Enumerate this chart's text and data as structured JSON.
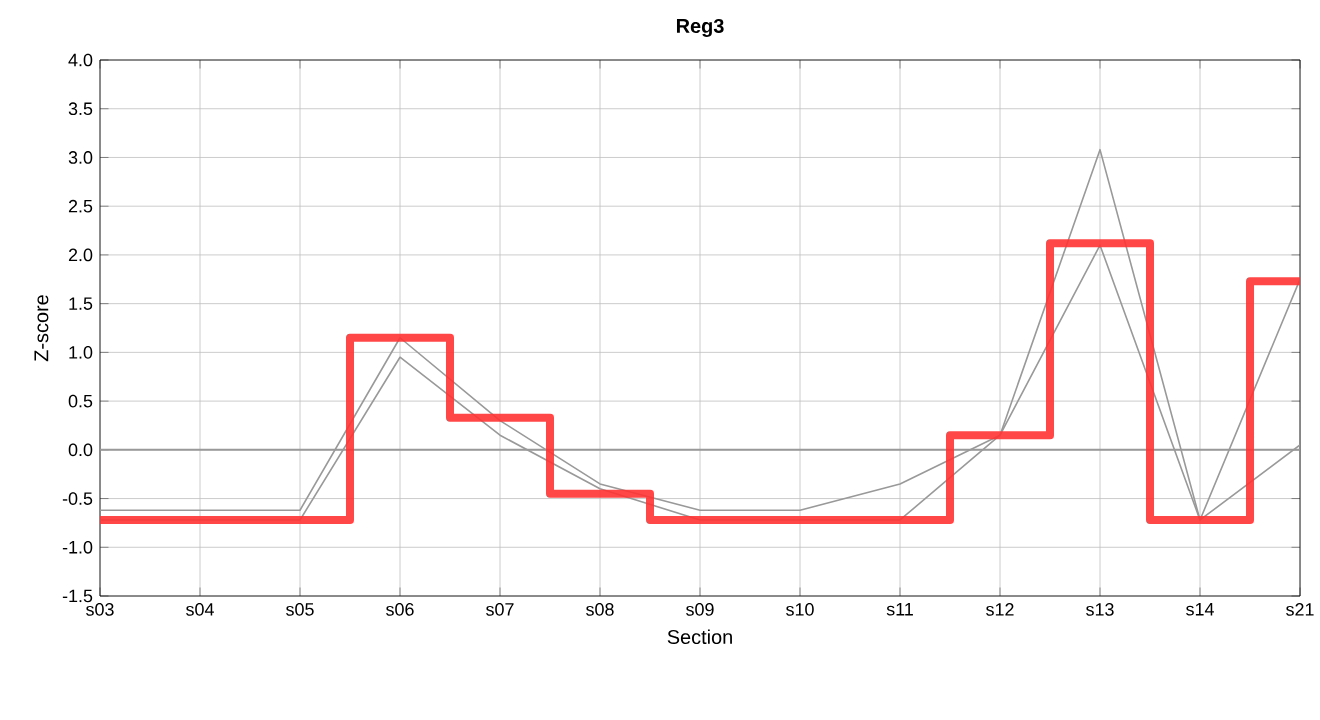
{
  "chart_data": {
    "type": "line",
    "title": "Reg3",
    "xlabel": "Section",
    "ylabel": "Z-score",
    "categories": [
      "s03",
      "s04",
      "s05",
      "s06",
      "s07",
      "s08",
      "s09",
      "s10",
      "s11",
      "s12",
      "s13",
      "s14",
      "s21"
    ],
    "series": [
      {
        "color": "#999999",
        "values": [
          -0.62,
          -0.62,
          -0.62,
          1.15,
          0.3,
          -0.35,
          -0.62,
          -0.62,
          -0.35,
          0.15,
          3.08,
          -0.72,
          1.75
        ]
      },
      {
        "color": "#999999",
        "values": [
          -0.72,
          null,
          -0.72,
          0.95,
          0.15,
          -0.4,
          -0.72,
          null,
          -0.72,
          0.15,
          2.1,
          -0.72,
          0.05
        ]
      },
      {
        "type": "step",
        "color": "#ff3333",
        "values": [
          -0.72,
          -0.72,
          -0.72,
          1.15,
          0.33,
          -0.45,
          -0.72,
          -0.72,
          -0.72,
          0.15,
          2.12,
          -0.72,
          1.73
        ]
      }
    ],
    "ylim": [
      -1.5,
      4.0
    ],
    "yticks": [
      {
        "value": -1.5,
        "label": "-1.5"
      },
      {
        "value": -1,
        "label": "-1.0"
      },
      {
        "value": -0.5,
        "label": "-0.5"
      },
      {
        "value": 0,
        "label": "0.0"
      },
      {
        "value": 0.5,
        "label": "0.5"
      },
      {
        "value": 1,
        "label": "1.0"
      },
      {
        "value": 1.5,
        "label": "1.5"
      },
      {
        "value": 2,
        "label": "2.0"
      },
      {
        "value": 2.5,
        "label": "2.5"
      },
      {
        "value": 3,
        "label": "3.0"
      },
      {
        "value": 3.5,
        "label": "3.5"
      },
      {
        "value": 4,
        "label": "4.0"
      }
    ],
    "ref_lines": [
      {
        "axis": "y",
        "value": 0,
        "color": "#999999"
      }
    ],
    "grid": true,
    "marker": "none"
  }
}
